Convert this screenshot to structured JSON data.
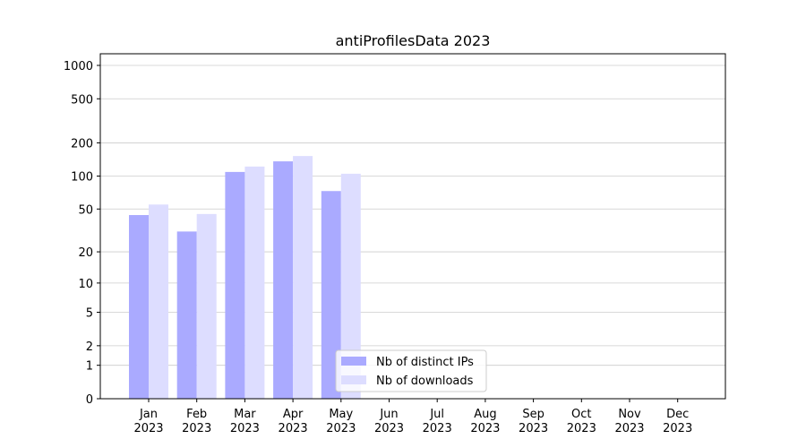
{
  "chart_data": {
    "type": "bar",
    "title": "antiProfilesData 2023",
    "categories": [
      "Jan\n2023",
      "Feb\n2023",
      "Mar\n2023",
      "Apr\n2023",
      "May\n2023",
      "Jun\n2023",
      "Jul\n2023",
      "Aug\n2023",
      "Sep\n2023",
      "Oct\n2023",
      "Nov\n2023",
      "Dec\n2023"
    ],
    "series": [
      {
        "name": "Nb of distinct IPs",
        "color": "#aaaaff",
        "values": [
          44,
          31,
          109,
          136,
          73,
          null,
          null,
          null,
          null,
          null,
          null,
          null
        ]
      },
      {
        "name": "Nb of downloads",
        "color": "#ddddff",
        "values": [
          55,
          45,
          122,
          152,
          105,
          null,
          null,
          null,
          null,
          null,
          null,
          null
        ]
      }
    ],
    "yscale": "log1p",
    "ylim": [
      0,
      1273
    ],
    "yticks": [
      0,
      1,
      2,
      5,
      10,
      20,
      50,
      100,
      200,
      500,
      1000
    ],
    "grid": true,
    "legend": "lower center"
  }
}
